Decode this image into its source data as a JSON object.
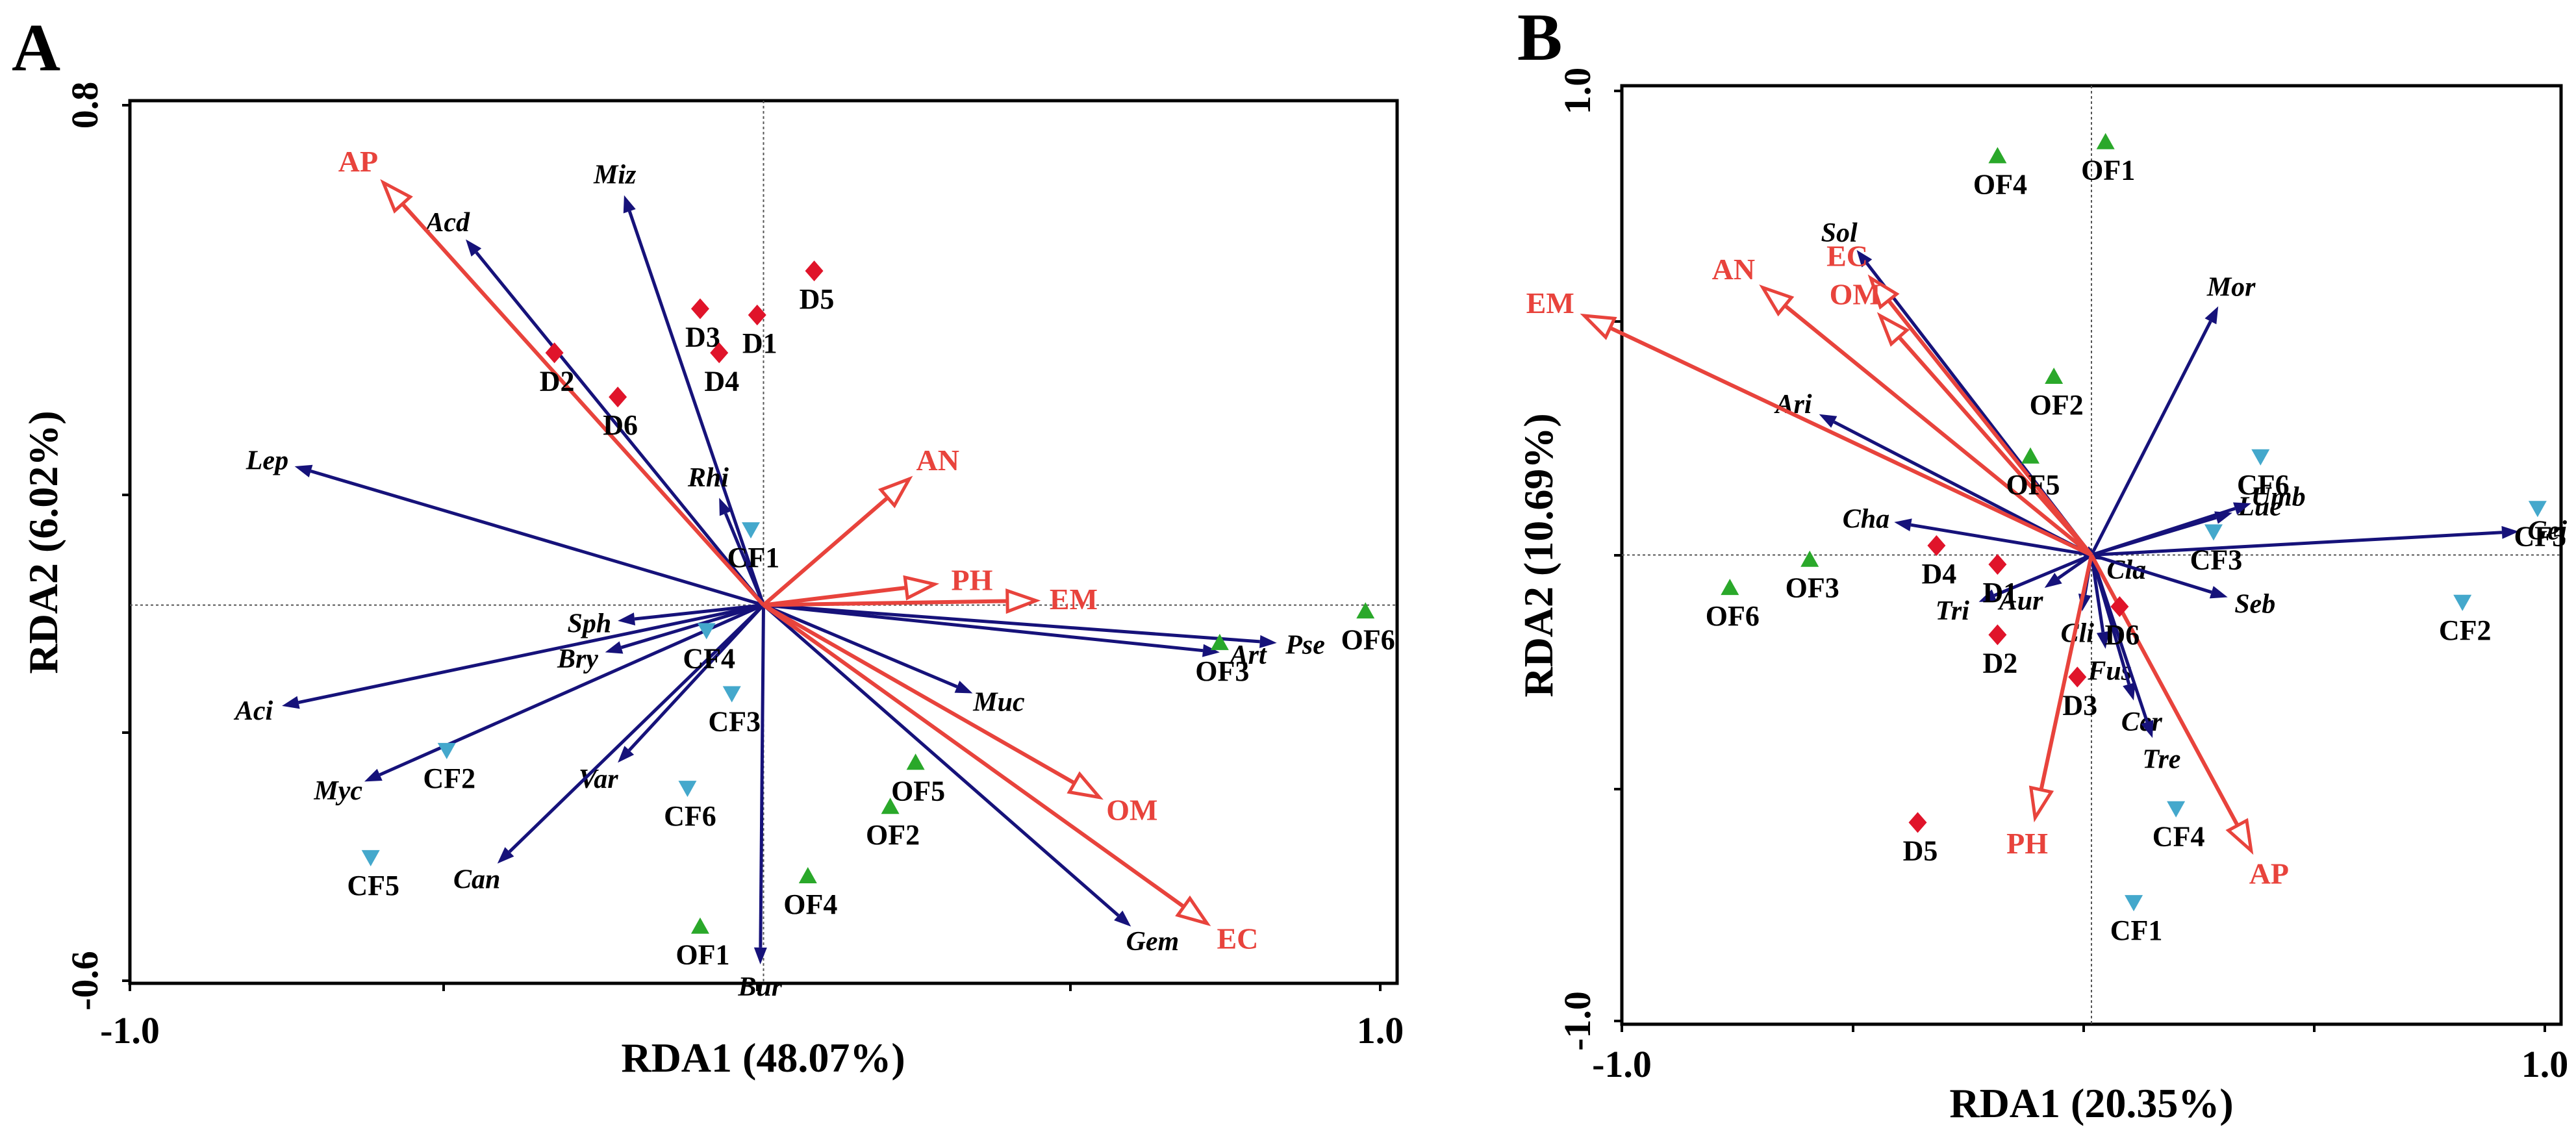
{
  "figure": {
    "type": "RDA biplot",
    "panels": 2
  },
  "colors": {
    "species_arrow": "#16127a",
    "env_arrow": "#e8433c",
    "D": "#e0142a",
    "OF": "#2aa82a",
    "CF": "#44a8cc",
    "text": "#000000",
    "env_text": "#e8433c"
  },
  "chart_data": [
    {
      "panel_label": "A",
      "type": "scatter",
      "xlabel": "RDA1 (48.07%)",
      "ylabel": "RDA2 (6.02%)",
      "xlim": [
        -1.0,
        1.0
      ],
      "ylim": [
        -0.6,
        0.8
      ],
      "x_ticks": [
        "-1.0",
        "1.0"
      ],
      "y_ticks": [
        "0.8",
        "-0.6"
      ],
      "env": [
        {
          "name": "AP",
          "x": -0.6,
          "y": 0.67
        },
        {
          "name": "AN",
          "x": 0.23,
          "y": 0.2
        },
        {
          "name": "PH",
          "x": 0.27,
          "y": 0.033
        },
        {
          "name": "EM",
          "x": 0.43,
          "y": 0.007
        },
        {
          "name": "OM",
          "x": 0.53,
          "y": -0.305
        },
        {
          "name": "EC",
          "x": 0.7,
          "y": -0.505
        }
      ],
      "species": [
        {
          "name": "Acd",
          "x": -0.47,
          "y": 0.58
        },
        {
          "name": "Miz",
          "x": -0.22,
          "y": 0.65
        },
        {
          "name": "Lep",
          "x": -0.74,
          "y": 0.22
        },
        {
          "name": "Rhi",
          "x": -0.07,
          "y": 0.17
        },
        {
          "name": "Sph",
          "x": -0.23,
          "y": -0.025
        },
        {
          "name": "Bry",
          "x": -0.25,
          "y": -0.075
        },
        {
          "name": "Aci",
          "x": -0.76,
          "y": -0.16
        },
        {
          "name": "Myc",
          "x": -0.63,
          "y": -0.28
        },
        {
          "name": "Var",
          "x": -0.23,
          "y": -0.25
        },
        {
          "name": "Can",
          "x": -0.42,
          "y": -0.41
        },
        {
          "name": "Bur",
          "x": -0.005,
          "y": -0.57
        },
        {
          "name": "Gem",
          "x": 0.58,
          "y": -0.51
        },
        {
          "name": "Muc",
          "x": 0.33,
          "y": -0.14
        },
        {
          "name": "Art",
          "x": 0.72,
          "y": -0.075
        },
        {
          "name": "Pse",
          "x": 0.81,
          "y": -0.06
        }
      ],
      "samples": [
        {
          "name": "D1",
          "group": "D",
          "x": -0.01,
          "y": 0.46
        },
        {
          "name": "D2",
          "group": "D",
          "x": -0.33,
          "y": 0.4
        },
        {
          "name": "D3",
          "group": "D",
          "x": -0.1,
          "y": 0.47
        },
        {
          "name": "D4",
          "group": "D",
          "x": -0.07,
          "y": 0.4
        },
        {
          "name": "D5",
          "group": "D",
          "x": 0.08,
          "y": 0.53
        },
        {
          "name": "D6",
          "group": "D",
          "x": -0.23,
          "y": 0.33
        },
        {
          "name": "OF1",
          "group": "OF",
          "x": -0.1,
          "y": -0.51
        },
        {
          "name": "OF2",
          "group": "OF",
          "x": 0.2,
          "y": -0.32
        },
        {
          "name": "OF3",
          "group": "OF",
          "x": 0.72,
          "y": -0.06
        },
        {
          "name": "OF4",
          "group": "OF",
          "x": 0.07,
          "y": -0.43
        },
        {
          "name": "OF5",
          "group": "OF",
          "x": 0.24,
          "y": -0.25
        },
        {
          "name": "OF6",
          "group": "OF",
          "x": 0.95,
          "y": -0.01
        },
        {
          "name": "CF1",
          "group": "CF",
          "x": -0.02,
          "y": 0.12
        },
        {
          "name": "CF2",
          "group": "CF",
          "x": -0.5,
          "y": -0.23
        },
        {
          "name": "CF3",
          "group": "CF",
          "x": -0.05,
          "y": -0.14
        },
        {
          "name": "CF4",
          "group": "CF",
          "x": -0.09,
          "y": -0.04
        },
        {
          "name": "CF5",
          "group": "CF",
          "x": -0.62,
          "y": -0.4
        },
        {
          "name": "CF6",
          "group": "CF",
          "x": -0.12,
          "y": -0.29
        }
      ]
    },
    {
      "panel_label": "B",
      "type": "scatter",
      "xlabel": "RDA1 (20.35%)",
      "ylabel": "RDA2 (10.69%)",
      "xlim": [
        -1.0,
        1.0
      ],
      "ylim": [
        -1.0,
        1.0
      ],
      "x_ticks": [
        "-1.0",
        "1.0"
      ],
      "y_ticks": [
        "1.0",
        "-1.0"
      ],
      "env": [
        {
          "name": "EC",
          "x": -0.47,
          "y": 0.59
        },
        {
          "name": "OM",
          "x": -0.45,
          "y": 0.51
        },
        {
          "name": "AN",
          "x": -0.7,
          "y": 0.57
        },
        {
          "name": "EM",
          "x": -1.08,
          "y": 0.51
        },
        {
          "name": "PH",
          "x": -0.12,
          "y": -0.56
        },
        {
          "name": "AP",
          "x": 0.34,
          "y": -0.63
        }
      ],
      "species": [
        {
          "name": "Sol",
          "x": -0.5,
          "y": 0.65
        },
        {
          "name": "Mor",
          "x": 0.27,
          "y": 0.53
        },
        {
          "name": "Ari",
          "x": -0.58,
          "y": 0.3
        },
        {
          "name": "Lue",
          "x": 0.3,
          "y": 0.09
        },
        {
          "name": "Umb",
          "x": 0.34,
          "y": 0.11
        },
        {
          "name": "Gei",
          "x": 0.91,
          "y": 0.05
        },
        {
          "name": "Cha",
          "x": -0.42,
          "y": 0.07
        },
        {
          "name": "Cla",
          "x": 0.02,
          "y": -0.01
        },
        {
          "name": "Seb",
          "x": 0.29,
          "y": -0.09
        },
        {
          "name": "Aur",
          "x": -0.1,
          "y": -0.07
        },
        {
          "name": "Tri",
          "x": -0.24,
          "y": -0.1
        },
        {
          "name": "Cli",
          "x": -0.02,
          "y": -0.12
        },
        {
          "name": "Fus",
          "x": 0.03,
          "y": -0.2
        },
        {
          "name": "Cer",
          "x": 0.09,
          "y": -0.31
        },
        {
          "name": "Tre",
          "x": 0.13,
          "y": -0.39
        }
      ],
      "samples": [
        {
          "name": "D1",
          "group": "D",
          "x": -0.2,
          "y": -0.02
        },
        {
          "name": "D2",
          "group": "D",
          "x": -0.2,
          "y": -0.17
        },
        {
          "name": "D3",
          "group": "D",
          "x": -0.03,
          "y": -0.26
        },
        {
          "name": "D4",
          "group": "D",
          "x": -0.33,
          "y": 0.02
        },
        {
          "name": "D5",
          "group": "D",
          "x": -0.37,
          "y": -0.57
        },
        {
          "name": "D6",
          "group": "D",
          "x": 0.06,
          "y": -0.11
        },
        {
          "name": "OF1",
          "group": "OF",
          "x": 0.03,
          "y": 0.88
        },
        {
          "name": "OF2",
          "group": "OF",
          "x": -0.08,
          "y": 0.38
        },
        {
          "name": "OF3",
          "group": "OF",
          "x": -0.6,
          "y": -0.01
        },
        {
          "name": "OF4",
          "group": "OF",
          "x": -0.2,
          "y": 0.85
        },
        {
          "name": "OF5",
          "group": "OF",
          "x": -0.13,
          "y": 0.21
        },
        {
          "name": "OF6",
          "group": "OF",
          "x": -0.77,
          "y": -0.07
        },
        {
          "name": "CF1",
          "group": "CF",
          "x": 0.09,
          "y": -0.74
        },
        {
          "name": "CF2",
          "group": "CF",
          "x": 0.79,
          "y": -0.1
        },
        {
          "name": "CF3",
          "group": "CF",
          "x": 0.26,
          "y": 0.05
        },
        {
          "name": "CF4",
          "group": "CF",
          "x": 0.18,
          "y": -0.54
        },
        {
          "name": "CF5",
          "group": "CF",
          "x": 0.95,
          "y": 0.1
        },
        {
          "name": "CF6",
          "group": "CF",
          "x": 0.36,
          "y": 0.21
        }
      ]
    }
  ]
}
